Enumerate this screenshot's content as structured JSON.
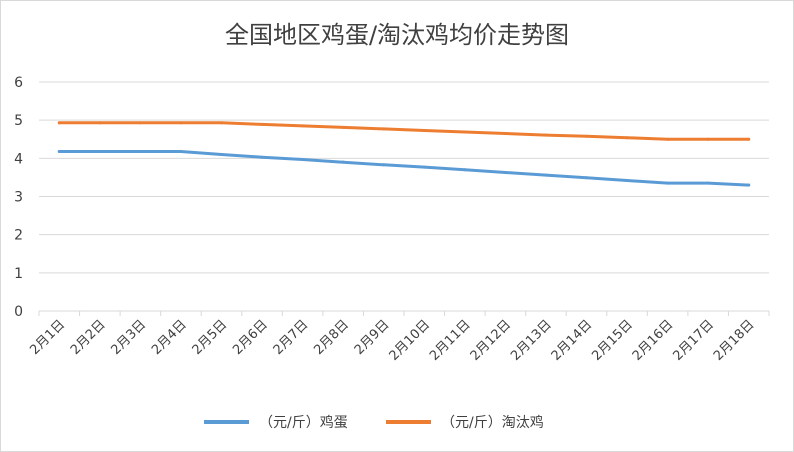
{
  "chart_data": {
    "type": "line",
    "title": "全国地区鸡蛋/淘汰鸡均价走势图",
    "categories": [
      "2月1日",
      "2月2日",
      "2月3日",
      "2月4日",
      "2月5日",
      "2月6日",
      "2月7日",
      "2月8日",
      "2月9日",
      "2月10日",
      "2月11日",
      "2月12日",
      "2月13日",
      "2月14日",
      "2月15日",
      "2月16日",
      "2月17日",
      "2月18日"
    ],
    "series": [
      {
        "name": "（元/斤）鸡蛋",
        "color": "#5b9bd5",
        "values": [
          4.18,
          4.18,
          4.18,
          4.18,
          4.1,
          4.03,
          3.97,
          3.9,
          3.83,
          3.77,
          3.7,
          3.63,
          3.56,
          3.49,
          3.42,
          3.35,
          3.35,
          3.3
        ]
      },
      {
        "name": "（元/斤）淘汰鸡",
        "color": "#ed7d31",
        "values": [
          4.93,
          4.93,
          4.93,
          4.93,
          4.93,
          4.89,
          4.85,
          4.81,
          4.77,
          4.73,
          4.69,
          4.65,
          4.61,
          4.58,
          4.54,
          4.5,
          4.5,
          4.5
        ]
      }
    ],
    "yticks": [
      "0",
      "1",
      "2",
      "3",
      "4",
      "5",
      "6"
    ],
    "ylim": [
      0,
      6
    ],
    "grid": true,
    "legend_position": "bottom"
  }
}
